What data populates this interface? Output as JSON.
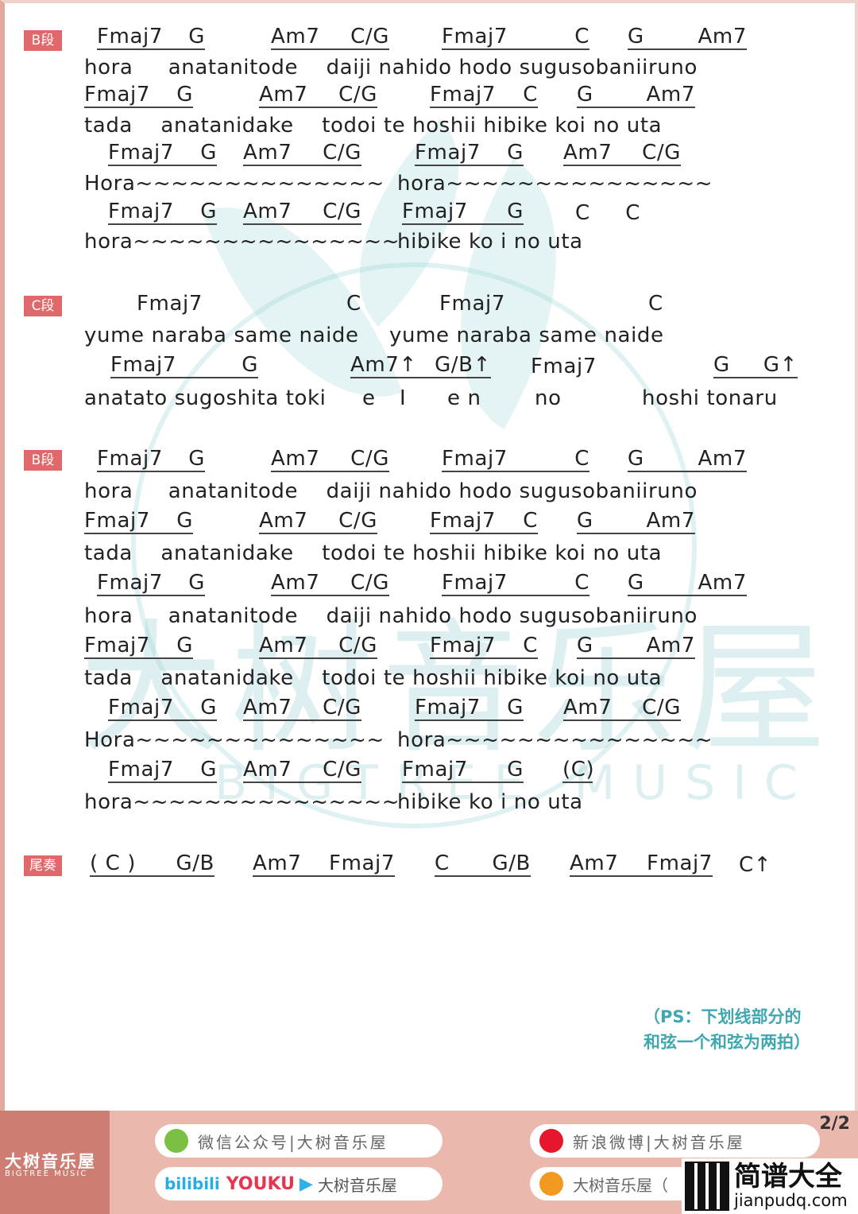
{
  "sections": [
    {
      "label": "B段",
      "rows": [
        {
          "type": "chords",
          "groups": [
            {
              "chords": [
                "Fmaj7",
                "G"
              ],
              "underline": true
            },
            {
              "chords": [
                "Am7",
                "C/G"
              ],
              "underline": true
            },
            {
              "chords": [
                "Fmaj7",
                "C"
              ],
              "underline": true
            },
            {
              "chords": [
                "G",
                "Am7"
              ],
              "underline": true
            }
          ]
        },
        {
          "type": "lyric",
          "parts": [
            "hora     anatanitode    daiji nahido hodo sugusobaniiruno"
          ]
        },
        {
          "type": "chords",
          "groups": [
            {
              "chords": [
                "Fmaj7",
                "G"
              ],
              "underline": true
            },
            {
              "chords": [
                "Am7",
                "C/G"
              ],
              "underline": true
            },
            {
              "chords": [
                "Fmaj7",
                "C"
              ],
              "underline": true
            },
            {
              "chords": [
                "G",
                "Am7"
              ],
              "underline": true
            }
          ]
        },
        {
          "type": "lyric",
          "parts": [
            "tada    anatanidake    todoi te hoshii hibike koi no uta"
          ]
        },
        {
          "type": "chords",
          "groups": [
            {
              "chords": [
                "Fmaj7",
                "G"
              ],
              "underline": true
            },
            {
              "chords": [
                "Am7",
                "C/G"
              ],
              "underline": true
            },
            {
              "chords": [
                "Fmaj7",
                "G"
              ],
              "underline": true
            },
            {
              "chords": [
                "Am7",
                "C/G"
              ],
              "underline": true
            }
          ]
        },
        {
          "type": "lyric",
          "parts": [
            "Hora~~~~~~~~~~~~~~",
            "hora~~~~~~~~~~~~~~~"
          ]
        },
        {
          "type": "chords",
          "groups": [
            {
              "chords": [
                "Fmaj7",
                "G"
              ],
              "underline": true
            },
            {
              "chords": [
                "Am7",
                "C/G"
              ],
              "underline": true
            },
            {
              "chords": [
                "Fmaj7",
                "G"
              ],
              "underline": true
            },
            {
              "chords": [
                "C",
                "C"
              ],
              "underline": false
            }
          ]
        },
        {
          "type": "lyric",
          "parts": [
            "hora~~~~~~~~~~~~~~~",
            "hibike ko i no uta"
          ]
        }
      ]
    },
    {
      "label": "C段",
      "rows": [
        {
          "type": "chords",
          "groups": [
            {
              "chords": [
                "Fmaj7"
              ],
              "underline": false
            },
            {
              "chords": [
                "C"
              ],
              "underline": false
            },
            {
              "chords": [
                "Fmaj7"
              ],
              "underline": false
            },
            {
              "chords": [
                "C"
              ],
              "underline": false
            }
          ]
        },
        {
          "type": "lyric",
          "parts": [
            "yume naraba same naide",
            "yume naraba same naide"
          ]
        },
        {
          "type": "chords",
          "groups": [
            {
              "chords": [
                "Fmaj7",
                "G"
              ],
              "underline": true
            },
            {
              "chords": [
                "Am7↑",
                "G/B↑"
              ],
              "underline": true
            },
            {
              "chords": [
                "Fmaj7"
              ],
              "underline": false
            },
            {
              "chords": [
                "G",
                "G↑"
              ],
              "underline": true
            }
          ]
        },
        {
          "type": "lyric",
          "parts": [
            "anatato sugoshita toki",
            "e",
            "I",
            "e n",
            "no",
            "hoshi tonaru"
          ]
        }
      ]
    },
    {
      "label": "B段",
      "rows": [
        {
          "type": "chords",
          "groups": [
            {
              "chords": [
                "Fmaj7",
                "G"
              ],
              "underline": true
            },
            {
              "chords": [
                "Am7",
                "C/G"
              ],
              "underline": true
            },
            {
              "chords": [
                "Fmaj7",
                "C"
              ],
              "underline": true
            },
            {
              "chords": [
                "G",
                "Am7"
              ],
              "underline": true
            }
          ]
        },
        {
          "type": "lyric",
          "parts": [
            "hora     anatanitode    daiji nahido hodo sugusobaniiruno"
          ]
        },
        {
          "type": "chords",
          "groups": [
            {
              "chords": [
                "Fmaj7",
                "G"
              ],
              "underline": true
            },
            {
              "chords": [
                "Am7",
                "C/G"
              ],
              "underline": true
            },
            {
              "chords": [
                "Fmaj7",
                "C"
              ],
              "underline": true
            },
            {
              "chords": [
                "G",
                "Am7"
              ],
              "underline": true
            }
          ]
        },
        {
          "type": "lyric",
          "parts": [
            "tada    anatanidake    todoi te hoshii hibike koi no uta"
          ]
        },
        {
          "type": "chords",
          "groups": [
            {
              "chords": [
                "Fmaj7",
                "G"
              ],
              "underline": true
            },
            {
              "chords": [
                "Am7",
                "C/G"
              ],
              "underline": true
            },
            {
              "chords": [
                "Fmaj7",
                "C"
              ],
              "underline": true
            },
            {
              "chords": [
                "G",
                "Am7"
              ],
              "underline": true
            }
          ]
        },
        {
          "type": "lyric",
          "parts": [
            "hora     anatanitode    daiji nahido hodo sugusobaniiruno"
          ]
        },
        {
          "type": "chords",
          "groups": [
            {
              "chords": [
                "Fmaj7",
                "G"
              ],
              "underline": true
            },
            {
              "chords": [
                "Am7",
                "C/G"
              ],
              "underline": true
            },
            {
              "chords": [
                "Fmaj7",
                "C"
              ],
              "underline": true
            },
            {
              "chords": [
                "G",
                "Am7"
              ],
              "underline": true
            }
          ]
        },
        {
          "type": "lyric",
          "parts": [
            "tada    anatanidake    todoi te hoshii hibike koi no uta"
          ]
        },
        {
          "type": "chords",
          "groups": [
            {
              "chords": [
                "Fmaj7",
                "G"
              ],
              "underline": true
            },
            {
              "chords": [
                "Am7",
                "C/G"
              ],
              "underline": true
            },
            {
              "chords": [
                "Fmaj7",
                "G"
              ],
              "underline": true
            },
            {
              "chords": [
                "Am7",
                "C/G"
              ],
              "underline": true
            }
          ]
        },
        {
          "type": "lyric",
          "parts": [
            "Hora~~~~~~~~~~~~~~",
            "hora~~~~~~~~~~~~~~~"
          ]
        },
        {
          "type": "chords",
          "groups": [
            {
              "chords": [
                "Fmaj7",
                "G"
              ],
              "underline": true
            },
            {
              "chords": [
                "Am7",
                "C/G"
              ],
              "underline": true
            },
            {
              "chords": [
                "Fmaj7",
                "G"
              ],
              "underline": true
            },
            {
              "chords": [
                "(C)"
              ],
              "underline": true
            }
          ]
        },
        {
          "type": "lyric",
          "parts": [
            "hora~~~~~~~~~~~~~~~",
            "hibike ko i no uta"
          ]
        }
      ]
    },
    {
      "label": "尾奏",
      "rows": [
        {
          "type": "chords",
          "groups": [
            {
              "chords": [
                "( C )",
                "G/B"
              ],
              "underline": true
            },
            {
              "chords": [
                "Am7",
                "Fmaj7"
              ],
              "underline": true
            },
            {
              "chords": [
                "C",
                "G/B"
              ],
              "underline": true
            },
            {
              "chords": [
                "Am7",
                "Fmaj7"
              ],
              "underline": true
            },
            {
              "chords": [
                "C↑"
              ],
              "underline": false
            }
          ]
        }
      ]
    }
  ],
  "note": {
    "line1": "（PS：下划线部分的",
    "line2": "和弦一个和弦为两拍）"
  },
  "watermark": {
    "name": "大树音乐屋",
    "english": "BIGTREE MUSIC"
  },
  "footer": {
    "brand": "大树音乐屋",
    "brand_en": "BIGTREE MUSIC",
    "wechat": "微信公众号|大树音乐屋",
    "video": {
      "bilibili": "bilibili",
      "youku": "YOUKU",
      "name": "大树音乐屋"
    },
    "weibo": "新浪微博|大树音乐屋",
    "taobao": "大树音乐屋（",
    "page": "2/2",
    "site_name": "简谱大全",
    "site_url": "jianpudq.com"
  },
  "colors": {
    "label": "#e0676a",
    "note": "#3fa7b0",
    "footer": "#ebb8ad",
    "footer_brand": "#cd7d72"
  }
}
